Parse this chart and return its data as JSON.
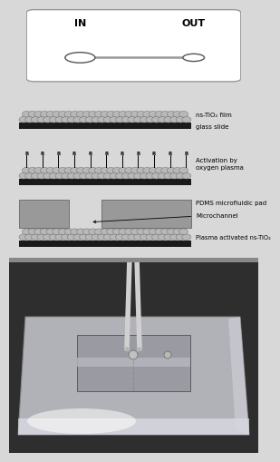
{
  "bg_color": "#d8d8d8",
  "top_panel_bg": "#ffffff",
  "top_panel_border": "#999999",
  "ball_color": "#b8b8b8",
  "ball_edge": "#666666",
  "bar_color": "#1a1a1a",
  "pdms_color": "#999999",
  "pdms_edge": "#555555",
  "label1": "ns-TiO₂ film",
  "label2": "glass slide",
  "label3": "Activation by\noxygen plasma",
  "label4": "PDMS microfluidic pad",
  "label5": "Microchannel",
  "label6": "Plasma activated ns-TiO₂",
  "label_in": "IN",
  "label_out": "OUT",
  "font_size_labels": 5.0,
  "font_size_inout": 8.0,
  "photo_dark": "#3a3a3a",
  "photo_slide_outer": "#c8c8c8",
  "photo_slide_inner": "#b0b0b0",
  "photo_highlight": "#e8e8e8"
}
